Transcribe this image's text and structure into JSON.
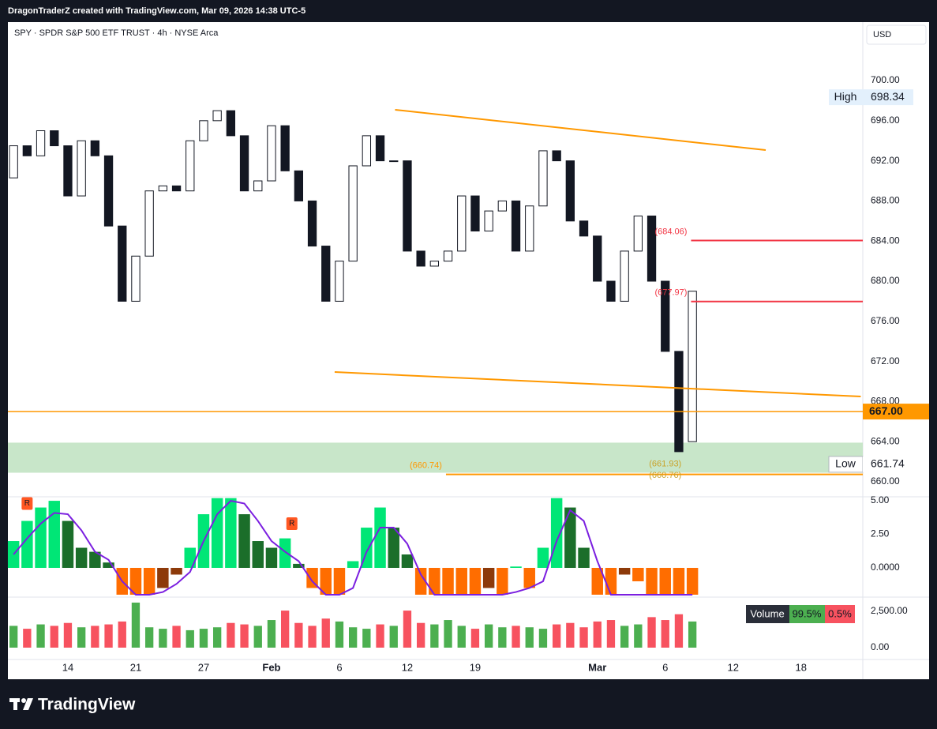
{
  "header": {
    "credit": "DragonTraderZ created with TradingView.com, Mar 09, 2026 14:38 UTC-5",
    "symbol": "SPY · SPDR S&P 500 ETF TRUST · 4h · NYSE Arca",
    "currency": "USD",
    "brand": "TradingView"
  },
  "chart_data": [
    {
      "type": "candlestick",
      "x": [
        0,
        1,
        2,
        3,
        4,
        5,
        6,
        7,
        8,
        9,
        10,
        11,
        12,
        13,
        14,
        15,
        16,
        17,
        18,
        19,
        20,
        21,
        22,
        23,
        24,
        25,
        26,
        27,
        28,
        29,
        30,
        31,
        32,
        33,
        34,
        35,
        36,
        37,
        38,
        39,
        40,
        41,
        42,
        43,
        44,
        45,
        46,
        47,
        48,
        49,
        50
      ],
      "open": [
        690.3,
        693.5,
        692.5,
        695,
        693.5,
        688.5,
        694,
        692.5,
        685.5,
        678,
        682.5,
        689,
        689.5,
        689,
        694,
        696,
        697,
        694.5,
        689,
        690,
        695.5,
        691,
        688,
        683.5,
        678,
        682,
        691.5,
        694.5,
        692,
        692,
        683,
        681.5,
        682,
        683,
        688.5,
        685,
        687,
        688,
        683,
        687.5,
        693,
        692,
        686,
        684.5,
        680,
        678,
        683,
        686.5,
        680,
        673,
        664
      ],
      "high": {
        "label": "High",
        "value": 698.34
      },
      "low": {
        "label": "Low",
        "value": 661.74
      },
      "close": [
        693.5,
        692.5,
        695,
        693.5,
        688.5,
        694,
        692.5,
        685.5,
        678,
        682.5,
        689,
        689.5,
        689,
        694,
        696,
        697,
        694.5,
        689,
        690,
        695.5,
        691,
        688,
        683.5,
        678,
        682,
        691.5,
        694.5,
        692,
        692,
        683,
        681.5,
        682,
        683,
        688.5,
        685,
        687,
        688,
        683,
        687.5,
        693,
        692,
        686,
        684.5,
        680,
        678,
        683,
        686.5,
        680,
        673,
        663,
        679
      ],
      "up_color": "#ffffff",
      "down_color": "#131722",
      "wick_color": "#131722",
      "xlim": [
        -0.3,
        62.55
      ],
      "xticks": [
        {
          "value": 4,
          "label": "14"
        },
        {
          "value": 9,
          "label": "21"
        },
        {
          "value": 14,
          "label": "27"
        },
        {
          "value": 19,
          "label": "Feb"
        },
        {
          "value": 24,
          "label": "6"
        },
        {
          "value": 29,
          "label": "12"
        },
        {
          "value": 34,
          "label": "19"
        },
        {
          "value": 43,
          "label": "Mar"
        },
        {
          "value": 48,
          "label": "6"
        },
        {
          "value": 53,
          "label": "12"
        },
        {
          "value": 58,
          "label": "18"
        }
      ],
      "ylim": [
        658.58,
        705.83
      ],
      "yticks": [
        {
          "value": 660,
          "label": "660.00"
        },
        {
          "value": 664,
          "label": "664.00"
        },
        {
          "value": 668,
          "label": "668.00"
        },
        {
          "value": 672,
          "label": "672.00"
        },
        {
          "value": 676,
          "label": "676.00"
        },
        {
          "value": 680,
          "label": "680.00"
        },
        {
          "value": 684,
          "label": "684.00"
        },
        {
          "value": 688,
          "label": "688.00"
        },
        {
          "value": 692,
          "label": "692.00"
        },
        {
          "value": 696,
          "label": "696.00"
        },
        {
          "value": 700,
          "label": "700.00"
        }
      ],
      "grid": false,
      "zone": {
        "y": [
          660.9,
          663.9
        ],
        "color": "#c8e6c9"
      },
      "trendlines": [
        {
          "x": [
            28.1,
            55.4
          ],
          "y": [
            697.09,
            693.07
          ],
          "color": "#ff9800"
        },
        {
          "x": [
            23.65,
            62.4
          ],
          "y": [
            670.94,
            668.5
          ],
          "color": "#ff9800"
        }
      ],
      "levels": [
        {
          "value": 684.06,
          "x_start": 49.9,
          "color": "#f23645",
          "label": "(684.06)"
        },
        {
          "value": 677.97,
          "x_start": 49.9,
          "color": "#f23645",
          "label": "(677.97)"
        },
        {
          "value": 660.74,
          "x_start": 31.85,
          "color": "#ff9800",
          "label": "(660.74)"
        }
      ],
      "level_labels": [
        {
          "x": 48,
          "value": 661.93,
          "label": "(661.93)"
        },
        {
          "x": 48,
          "value": 660.76,
          "label": "(660.76)"
        }
      ],
      "price_line": {
        "value": 667,
        "label": "667.00",
        "color": "#ff9800"
      }
    },
    {
      "type": "histogram",
      "values": [
        2.0,
        3.5,
        4.5,
        5.0,
        3.5,
        1.5,
        1.2,
        0.4,
        -2.0,
        -2.0,
        -2.0,
        -1.5,
        -0.5,
        1.5,
        4.0,
        5.2,
        5.2,
        4.0,
        2.0,
        1.5,
        2.2,
        0.3,
        -1.5,
        -2.0,
        -2.0,
        0.5,
        3.0,
        4.5,
        3.0,
        1.0,
        -2.0,
        -2.0,
        -2.0,
        -2.0,
        -2.0,
        -1.5,
        -2.0,
        0.1,
        -1.5,
        1.5,
        5.2,
        4.5,
        1.5,
        -2.0,
        -2.0,
        -0.5,
        -1.0,
        -2.0,
        -2.0,
        -2.0,
        -2.0
      ],
      "colors": {
        "pos_rising": "#00e676",
        "pos_falling": "#1b6e2a",
        "neg_falling": "#ff6d00",
        "neg_rising": "#8d3a0a"
      },
      "signal": {
        "color": "#7b1fe0",
        "values": [
          1.0,
          2.2,
          3.3,
          4.1,
          4.0,
          2.8,
          1.2,
          0.6,
          -1.0,
          -2.0,
          -2.0,
          -1.8,
          -1.2,
          -0.3,
          2.0,
          4.0,
          5.0,
          4.8,
          3.5,
          2.0,
          1.2,
          0.5,
          -1.0,
          -2.0,
          -2.0,
          -1.5,
          1.2,
          3.0,
          3.0,
          1.8,
          -0.5,
          -2.0,
          -2.0,
          -2.0,
          -2.0,
          -2.0,
          -2.0,
          -1.8,
          -1.5,
          -1.0,
          2.0,
          4.3,
          3.5,
          0.5,
          -2.0,
          -2.0,
          -2.0,
          -2.0,
          -2.0,
          -2.0,
          -2.0
        ]
      },
      "markers": [
        {
          "x": 1,
          "y": 4.8,
          "label": "R"
        },
        {
          "x": 20.5,
          "y": 3.3,
          "label": "R"
        }
      ],
      "marker_color": "#ff5722",
      "ylim": [
        -2.12,
        5.24
      ],
      "yticks": [
        {
          "value": 0,
          "label": "0.0000"
        },
        {
          "value": 2.5,
          "label": "2.50"
        },
        {
          "value": 5,
          "label": "5.00"
        }
      ]
    },
    {
      "type": "volume",
      "values": [
        1500,
        1300,
        1600,
        1500,
        1700,
        1400,
        1500,
        1600,
        1800,
        3100,
        1400,
        1300,
        1500,
        1200,
        1300,
        1400,
        1700,
        1600,
        1500,
        1900,
        2550,
        1700,
        1500,
        2000,
        1800,
        1400,
        1300,
        1600,
        1500,
        2550,
        1700,
        1600,
        1900,
        1500,
        1300,
        1600,
        1400,
        1500,
        1400,
        1300,
        1600,
        1700,
        1400,
        1800,
        1900,
        1500,
        1600,
        2100,
        1900,
        2300,
        1800
      ],
      "up_color": "#4caf50",
      "down_color": "#f7525f",
      "legend": {
        "name": "Volume",
        "up": "99.5%",
        "down": "0.5%"
      },
      "ylim": [
        -815,
        3424
      ],
      "yticks": [
        {
          "value": 0,
          "label": "0.00"
        },
        {
          "value": 2500,
          "label": "2,500.00"
        }
      ]
    }
  ]
}
